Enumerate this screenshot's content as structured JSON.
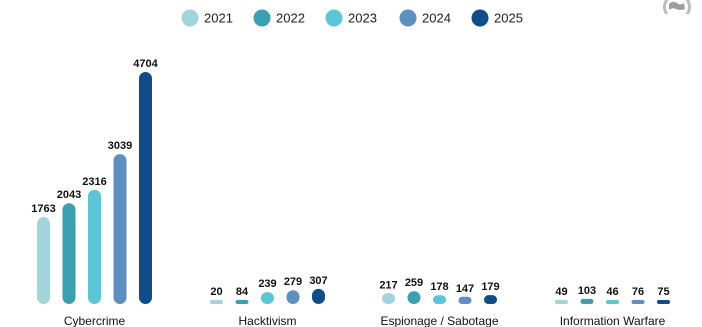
{
  "chart_data": {
    "type": "bar",
    "categories": [
      "Cybercrime",
      "Hacktivism",
      "Espionage / Sabotage",
      "Information Warfare"
    ],
    "series": [
      {
        "name": "2021",
        "color": "#a3d3db",
        "values": [
          1763,
          20,
          217,
          49
        ]
      },
      {
        "name": "2022",
        "color": "#3a9fae",
        "values": [
          2043,
          84,
          259,
          103
        ]
      },
      {
        "name": "2023",
        "color": "#5cc6d6",
        "values": [
          2316,
          239,
          178,
          46
        ]
      },
      {
        "name": "2024",
        "color": "#5f8fbe",
        "values": [
          3039,
          279,
          147,
          76
        ]
      },
      {
        "name": "2025",
        "color": "#0f4c8a",
        "values": [
          4704,
          307,
          179,
          75
        ]
      }
    ],
    "legend_position": "top-center",
    "grid": false,
    "ylim": [
      0,
      4704
    ]
  },
  "badge": {
    "icon": "globe-icon"
  }
}
